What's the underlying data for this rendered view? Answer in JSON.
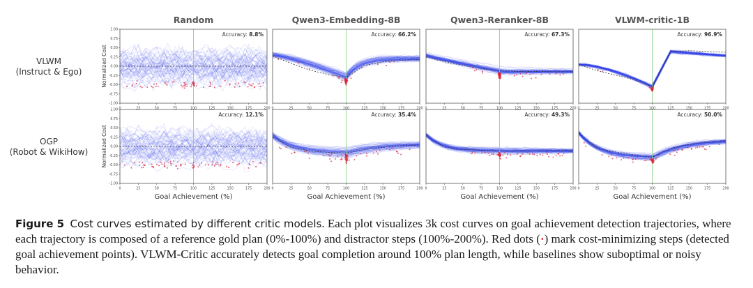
{
  "figure": {
    "columns": [
      "Random",
      "Qwen3-Embedding-8B",
      "Qwen3-Reranker-8B",
      "VLWM-critic-1B"
    ],
    "rows": [
      {
        "line1": "VLWM",
        "line2": "(Instruct & Ego)"
      },
      {
        "line1": "OGP",
        "line2": "(Robot & WikiHow)"
      }
    ],
    "ylabel": "Normalized Cost",
    "xlabel": "Goal Achievement (%)",
    "accuracy_prefix": "Accuracy:",
    "x_ticks": [
      "0",
      "25",
      "50",
      "75",
      "100",
      "125",
      "150",
      "175",
      "200"
    ],
    "y_ticks": [
      "1.00",
      "0.75",
      "0.50",
      "0.25",
      "0.00",
      "-0.25",
      "-0.50",
      "-0.75",
      "-1.00"
    ]
  },
  "caption": {
    "label": "Figure 5",
    "title": "Cost curves estimated by different critic models",
    "text_before_dot": ". Each plot visualizes 3k cost curves on goal achievement detection trajectories, where each trajectory is composed of a reference gold plan (0%-100%) and distractor steps (100%-200%). Red dots (",
    "dot": "·",
    "text_after_dot": ") mark cost-minimizing steps (detected goal achievement points). VLWM-Critic accurately detects goal completion around 100% plan length, while baselines show suboptimal or noisy behavior."
  },
  "colors": {
    "curve": "#2f3ee8",
    "dot": "#d9263b",
    "gold_line": "#7fcf7f",
    "mean": "#333333"
  },
  "chart_data": [
    {
      "type": "line",
      "title": "Random",
      "row": "VLWM (Instruct & Ego)",
      "accuracy": "8.8%",
      "accuracy_value": 8.8,
      "profile": "random",
      "x": [
        0,
        25,
        50,
        75,
        100,
        125,
        150,
        175,
        200
      ],
      "mean_cost": [
        0.0,
        0.0,
        0.0,
        0.0,
        0.0,
        0.0,
        0.0,
        0.0,
        0.0
      ],
      "xlim": [
        0,
        200
      ],
      "ylim": [
        -1,
        1
      ],
      "xlabel": "",
      "ylabel": "Normalized Cost"
    },
    {
      "type": "line",
      "title": "Qwen3-Embedding-8B",
      "row": "VLWM (Instruct & Ego)",
      "accuracy": "66.2%",
      "accuracy_value": 66.2,
      "profile": "embed1",
      "x": [
        0,
        25,
        50,
        75,
        100,
        125,
        150,
        175,
        200
      ],
      "mean_cost": [
        0.28,
        0.08,
        -0.1,
        -0.22,
        -0.3,
        0.02,
        0.12,
        0.16,
        0.18
      ],
      "xlim": [
        0,
        200
      ],
      "ylim": [
        -1,
        1
      ],
      "xlabel": "",
      "ylabel": ""
    },
    {
      "type": "line",
      "title": "Qwen3-Reranker-8B",
      "row": "VLWM (Instruct & Ego)",
      "accuracy": "67.3%",
      "accuracy_value": 67.3,
      "profile": "rerank1",
      "x": [
        0,
        25,
        50,
        75,
        100,
        125,
        150,
        175,
        200
      ],
      "mean_cost": [
        0.25,
        0.12,
        0.02,
        -0.06,
        -0.12,
        -0.14,
        -0.14,
        -0.15,
        -0.15
      ],
      "xlim": [
        0,
        200
      ],
      "ylim": [
        -1,
        1
      ],
      "xlabel": "",
      "ylabel": ""
    },
    {
      "type": "line",
      "title": "VLWM-critic-1B",
      "row": "VLWM (Instruct & Ego)",
      "accuracy": "96.9%",
      "accuracy_value": 96.9,
      "profile": "vlwm1",
      "x": [
        0,
        25,
        50,
        75,
        100,
        125,
        150,
        175,
        200
      ],
      "mean_cost": [
        0.05,
        -0.12,
        -0.24,
        -0.36,
        -0.55,
        0.4,
        0.42,
        0.4,
        0.38
      ],
      "xlim": [
        0,
        200
      ],
      "ylim": [
        -1,
        1
      ],
      "xlabel": "",
      "ylabel": ""
    },
    {
      "type": "line",
      "title": "",
      "row": "OGP (Robot & WikiHow)",
      "accuracy": "12.1%",
      "accuracy_value": 12.1,
      "profile": "random",
      "x": [
        0,
        25,
        50,
        75,
        100,
        125,
        150,
        175,
        200
      ],
      "mean_cost": [
        0.0,
        0.0,
        0.0,
        0.0,
        0.0,
        0.0,
        0.0,
        0.0,
        0.0
      ],
      "xlim": [
        0,
        200
      ],
      "ylim": [
        -1,
        1
      ],
      "xlabel": "Goal Achievement (%)",
      "ylabel": "Normalized Cost"
    },
    {
      "type": "line",
      "title": "",
      "row": "OGP (Robot & WikiHow)",
      "accuracy": "35.4%",
      "accuracy_value": 35.4,
      "profile": "embed2",
      "x": [
        0,
        25,
        50,
        75,
        100,
        125,
        150,
        175,
        200
      ],
      "mean_cost": [
        0.25,
        -0.02,
        -0.12,
        -0.16,
        -0.18,
        -0.08,
        -0.02,
        0.02,
        0.04
      ],
      "xlim": [
        0,
        200
      ],
      "ylim": [
        -1,
        1
      ],
      "xlabel": "Goal Achievement (%)",
      "ylabel": ""
    },
    {
      "type": "line",
      "title": "",
      "row": "OGP (Robot & WikiHow)",
      "accuracy": "49.3%",
      "accuracy_value": 49.3,
      "profile": "rerank2",
      "x": [
        0,
        25,
        50,
        75,
        100,
        125,
        150,
        175,
        200
      ],
      "mean_cost": [
        0.3,
        -0.02,
        -0.08,
        -0.1,
        -0.12,
        -0.12,
        -0.12,
        -0.11,
        -0.11
      ],
      "xlim": [
        0,
        200
      ],
      "ylim": [
        -1,
        1
      ],
      "xlabel": "Goal Achievement (%)",
      "ylabel": ""
    },
    {
      "type": "line",
      "title": "",
      "row": "OGP (Robot & WikiHow)",
      "accuracy": "50.0%",
      "accuracy_value": 50.0,
      "profile": "vlwm2",
      "x": [
        0,
        25,
        50,
        75,
        100,
        125,
        150,
        175,
        200
      ],
      "mean_cost": [
        0.35,
        -0.05,
        -0.15,
        -0.22,
        -0.3,
        -0.05,
        0.05,
        0.12,
        0.16
      ],
      "xlim": [
        0,
        200
      ],
      "ylim": [
        -1,
        1
      ],
      "xlabel": "Goal Achievement (%)",
      "ylabel": ""
    }
  ]
}
